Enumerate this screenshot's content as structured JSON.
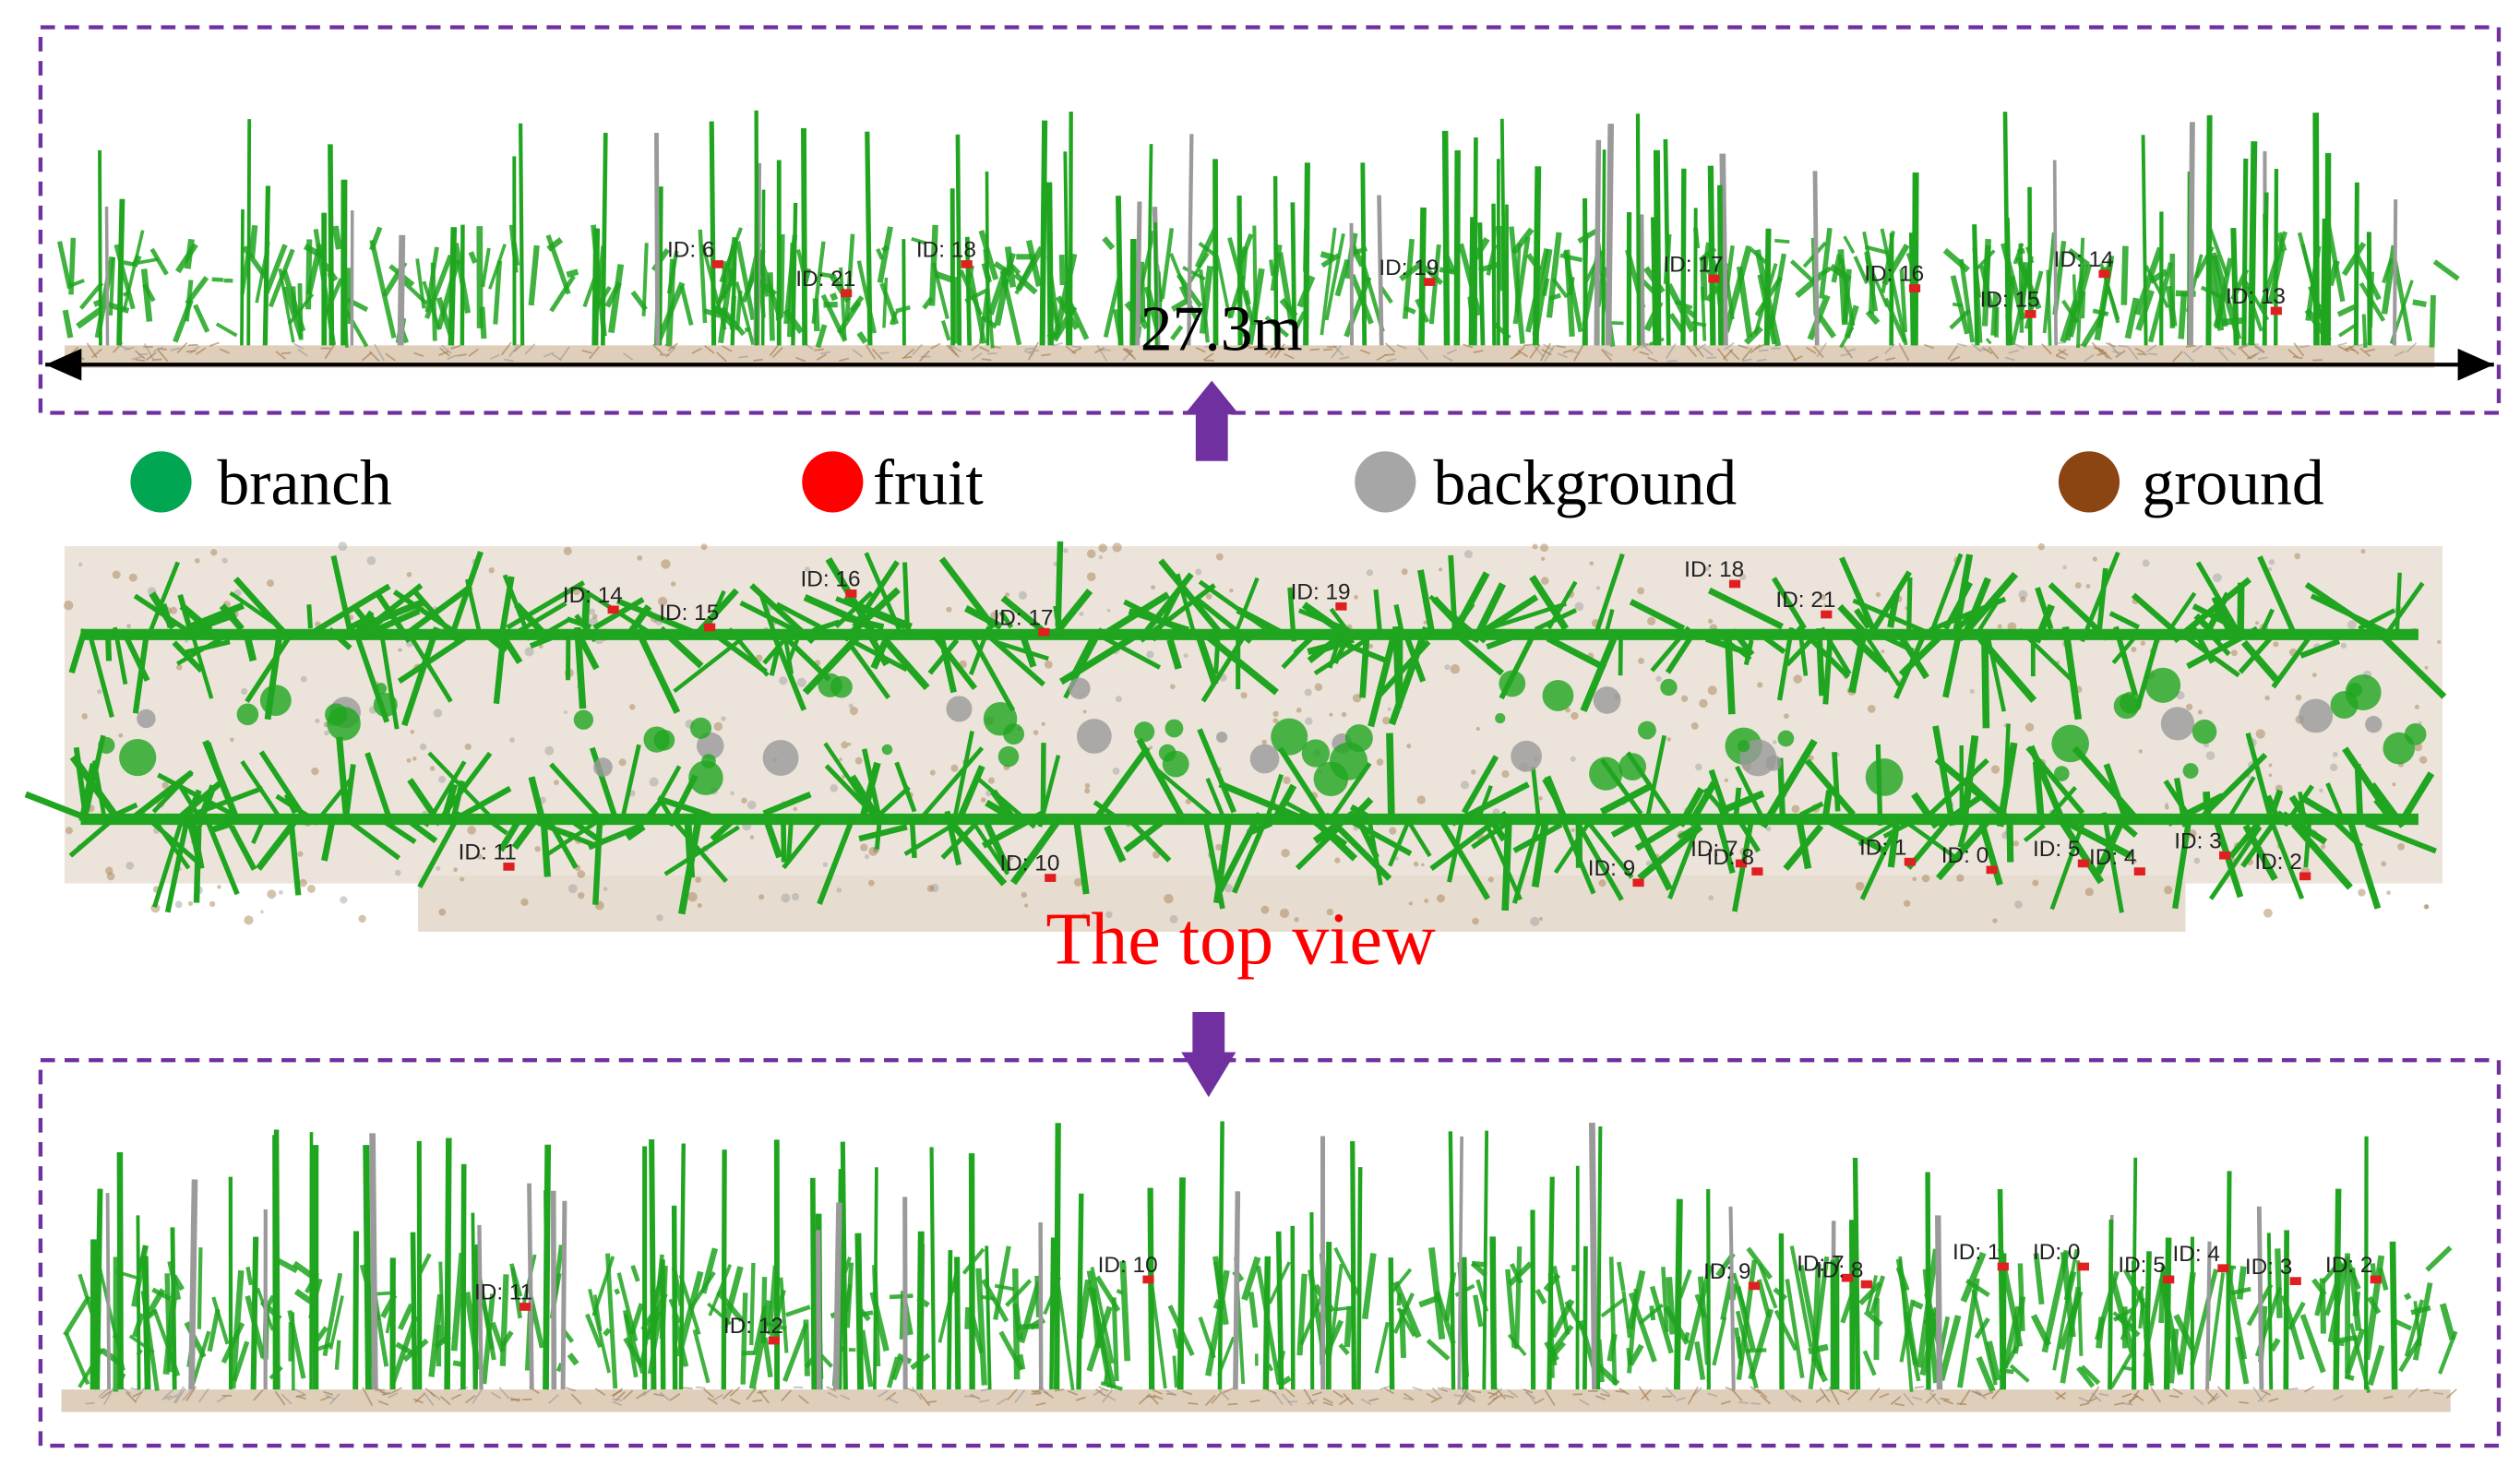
{
  "scale_label": "27.3m",
  "legend": [
    {
      "label": "branch",
      "color": "#00a651"
    },
    {
      "label": "fruit",
      "color": "#ff0000"
    },
    {
      "label": "background",
      "color": "#a6a6a6"
    },
    {
      "label": "ground",
      "color": "#8b4513"
    }
  ],
  "caption": "The top view",
  "side_view_upper": {
    "labels": [
      "ID: 6",
      "ID: 21",
      "ID: 18",
      "ID: 19",
      "ID: 17",
      "ID: 16",
      "ID: 15",
      "ID: 14",
      "ID: 13"
    ]
  },
  "top_view": {
    "labels": [
      "ID: 14",
      "ID: 15",
      "ID: 16",
      "ID: 17",
      "ID: 19",
      "ID: 18",
      "ID: 21",
      "ID: 11",
      "ID: 10",
      "ID: 9",
      "ID: 7",
      "ID: 8",
      "ID: 1",
      "ID: 0",
      "ID: 5",
      "ID: 4",
      "ID: 3",
      "ID: 2"
    ]
  },
  "side_view_lower": {
    "labels": [
      "ID: 11",
      "ID: 12",
      "ID: 10",
      "ID: 9",
      "ID: 7",
      "ID: 8",
      "ID: 1",
      "ID: 0",
      "ID: 5",
      "ID: 4",
      "ID: 3",
      "ID: 2"
    ]
  }
}
